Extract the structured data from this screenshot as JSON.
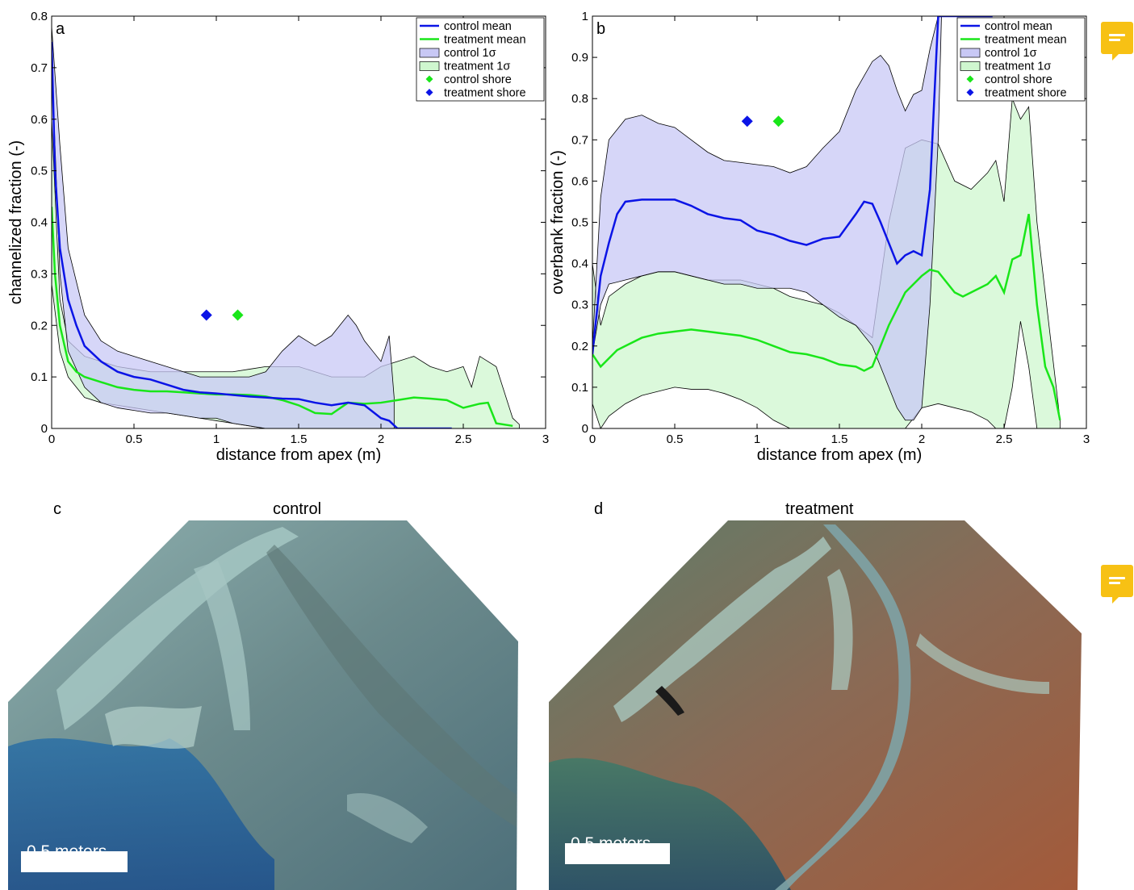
{
  "panels": {
    "c": {
      "letter": "c",
      "title": "control",
      "scale_label": "0.5 meters"
    },
    "d": {
      "letter": "d",
      "title": "treatment",
      "scale_label": "0.5 meters"
    }
  },
  "comment_icons": [
    {
      "name": "comment-icon"
    },
    {
      "name": "comment-icon"
    }
  ],
  "colors": {
    "control": "#0b14e6",
    "treatment": "#19e619",
    "control_band": "#c8c8f5",
    "treatment_band": "#cff7cf",
    "overlap": "#a9d8d0"
  },
  "chart_data": [
    {
      "type": "line",
      "panel_letter": "a",
      "xlabel": "distance from apex (m)",
      "ylabel": "channelized fraction (-)",
      "xlim": [
        0,
        3
      ],
      "ylim": [
        0,
        0.8
      ],
      "xticks": [
        0,
        0.5,
        1,
        1.5,
        2,
        2.5,
        3
      ],
      "xtick_labels": [
        "0",
        "0.5",
        "1",
        "1.5",
        "2",
        "2.5",
        "3"
      ],
      "yticks": [
        0,
        0.1,
        0.2,
        0.3,
        0.4,
        0.5,
        0.6,
        0.7,
        0.8
      ],
      "ytick_labels": [
        "0",
        "0.1",
        "0.2",
        "0.3",
        "0.4",
        "0.5",
        "0.6",
        "0.7",
        "0.8"
      ],
      "legend_position": "top-right",
      "legend": [
        "control mean",
        "treatment mean",
        "control 1σ",
        "treatment 1σ",
        "control shore",
        "treatment shore"
      ],
      "control_mean": {
        "x": [
          0,
          0.02,
          0.05,
          0.1,
          0.15,
          0.2,
          0.3,
          0.4,
          0.5,
          0.6,
          0.7,
          0.8,
          0.9,
          1.0,
          1.1,
          1.2,
          1.3,
          1.4,
          1.5,
          1.6,
          1.7,
          1.8,
          1.9,
          2.0,
          2.05,
          2.1,
          2.2,
          2.3,
          2.43
        ],
        "y": [
          0.75,
          0.5,
          0.35,
          0.25,
          0.2,
          0.16,
          0.13,
          0.11,
          0.1,
          0.095,
          0.085,
          0.075,
          0.07,
          0.068,
          0.065,
          0.062,
          0.06,
          0.058,
          0.057,
          0.05,
          0.045,
          0.05,
          0.045,
          0.02,
          0.015,
          0,
          0,
          0,
          0
        ]
      },
      "treatment_mean": {
        "x": [
          0,
          0.02,
          0.05,
          0.1,
          0.15,
          0.2,
          0.3,
          0.4,
          0.5,
          0.6,
          0.7,
          0.8,
          0.9,
          1.0,
          1.1,
          1.2,
          1.3,
          1.4,
          1.5,
          1.6,
          1.7,
          1.8,
          1.9,
          2.0,
          2.1,
          2.2,
          2.3,
          2.4,
          2.5,
          2.6,
          2.65,
          2.7,
          2.8
        ],
        "y": [
          0.43,
          0.3,
          0.2,
          0.13,
          0.11,
          0.1,
          0.09,
          0.08,
          0.075,
          0.072,
          0.072,
          0.07,
          0.068,
          0.066,
          0.066,
          0.065,
          0.062,
          0.055,
          0.045,
          0.03,
          0.028,
          0.05,
          0.048,
          0.05,
          0.055,
          0.06,
          0.058,
          0.055,
          0.04,
          0.048,
          0.05,
          0.01,
          0.005
        ]
      },
      "control_band": {
        "x": [
          0,
          0.05,
          0.1,
          0.2,
          0.3,
          0.4,
          0.5,
          0.6,
          0.7,
          0.8,
          0.9,
          1.0,
          1.1,
          1.2,
          1.3,
          1.4,
          1.5,
          1.6,
          1.7,
          1.8,
          1.85,
          1.9,
          1.95,
          2.0,
          2.05,
          2.08
        ],
        "upper": [
          0.78,
          0.55,
          0.35,
          0.22,
          0.17,
          0.15,
          0.14,
          0.13,
          0.12,
          0.11,
          0.1,
          0.1,
          0.1,
          0.1,
          0.11,
          0.15,
          0.18,
          0.16,
          0.18,
          0.22,
          0.2,
          0.17,
          0.15,
          0.13,
          0.18,
          0.06
        ],
        "lower": [
          0.72,
          0.3,
          0.15,
          0.08,
          0.05,
          0.04,
          0.035,
          0.03,
          0.03,
          0.025,
          0.02,
          0.02,
          0.01,
          0.005,
          0,
          0,
          0,
          0,
          0,
          0,
          0,
          0,
          0,
          0,
          0,
          0
        ]
      },
      "treatment_band": {
        "x": [
          0,
          0.05,
          0.1,
          0.2,
          0.3,
          0.4,
          0.5,
          0.6,
          0.7,
          0.8,
          0.9,
          1.0,
          1.1,
          1.2,
          1.3,
          1.4,
          1.5,
          1.6,
          1.7,
          1.8,
          1.9,
          2.0,
          2.1,
          2.2,
          2.3,
          2.4,
          2.5,
          2.55,
          2.6,
          2.7,
          2.8,
          2.84
        ],
        "upper": [
          0.6,
          0.25,
          0.17,
          0.14,
          0.13,
          0.12,
          0.115,
          0.11,
          0.11,
          0.11,
          0.11,
          0.11,
          0.11,
          0.115,
          0.12,
          0.12,
          0.12,
          0.11,
          0.1,
          0.1,
          0.1,
          0.12,
          0.13,
          0.14,
          0.12,
          0.11,
          0.12,
          0.08,
          0.14,
          0.12,
          0.02,
          0.008
        ],
        "lower": [
          0.28,
          0.15,
          0.1,
          0.06,
          0.05,
          0.045,
          0.04,
          0.035,
          0.03,
          0.025,
          0.02,
          0.015,
          0.01,
          0.005,
          0,
          0,
          0,
          0,
          0,
          0,
          0,
          0,
          0,
          0,
          0,
          0,
          0,
          0,
          0,
          0,
          0,
          0
        ]
      },
      "control_shore": {
        "x": 1.13,
        "y": 0.22
      },
      "treatment_shore": {
        "x": 0.94,
        "y": 0.22
      }
    },
    {
      "type": "line",
      "panel_letter": "b",
      "xlabel": "distance from apex (m)",
      "ylabel": "overbank fraction (-)",
      "xlim": [
        0,
        3
      ],
      "ylim": [
        0,
        1
      ],
      "xticks": [
        0,
        0.5,
        1,
        1.5,
        2,
        2.5,
        3
      ],
      "xtick_labels": [
        "0",
        "0.5",
        "1",
        "1.5",
        "2",
        "2.5",
        "3"
      ],
      "yticks": [
        0,
        0.1,
        0.2,
        0.3,
        0.4,
        0.5,
        0.6,
        0.7,
        0.8,
        0.9,
        1
      ],
      "ytick_labels": [
        "0",
        "0.1",
        "0.2",
        "0.3",
        "0.4",
        "0.5",
        "0.6",
        "0.7",
        "0.8",
        "0.9",
        "1"
      ],
      "legend_position": "top-right",
      "legend": [
        "control mean",
        "treatment mean",
        "control 1σ",
        "treatment 1σ",
        "control shore",
        "treatment shore"
      ],
      "control_mean": {
        "x": [
          0,
          0.05,
          0.1,
          0.15,
          0.2,
          0.3,
          0.4,
          0.5,
          0.6,
          0.7,
          0.8,
          0.9,
          1.0,
          1.1,
          1.2,
          1.3,
          1.4,
          1.5,
          1.6,
          1.65,
          1.7,
          1.75,
          1.8,
          1.85,
          1.9,
          1.95,
          2.0,
          2.05,
          2.1,
          2.15,
          2.3,
          2.43
        ],
        "y": [
          0.18,
          0.37,
          0.45,
          0.52,
          0.55,
          0.555,
          0.555,
          0.555,
          0.54,
          0.52,
          0.51,
          0.505,
          0.48,
          0.47,
          0.455,
          0.445,
          0.46,
          0.465,
          0.52,
          0.55,
          0.545,
          0.5,
          0.45,
          0.4,
          0.42,
          0.43,
          0.42,
          0.58,
          1,
          1,
          1,
          1
        ]
      },
      "treatment_mean": {
        "x": [
          0,
          0.05,
          0.1,
          0.15,
          0.2,
          0.3,
          0.4,
          0.5,
          0.6,
          0.7,
          0.8,
          0.9,
          1.0,
          1.1,
          1.2,
          1.3,
          1.4,
          1.5,
          1.6,
          1.65,
          1.7,
          1.8,
          1.9,
          2.0,
          2.05,
          2.1,
          2.2,
          2.25,
          2.3,
          2.4,
          2.45,
          2.5,
          2.55,
          2.6,
          2.65,
          2.7,
          2.75,
          2.8,
          2.84
        ],
        "y": [
          0.18,
          0.15,
          0.17,
          0.19,
          0.2,
          0.22,
          0.23,
          0.235,
          0.24,
          0.235,
          0.23,
          0.225,
          0.215,
          0.2,
          0.185,
          0.18,
          0.17,
          0.155,
          0.15,
          0.14,
          0.15,
          0.25,
          0.33,
          0.37,
          0.385,
          0.38,
          0.33,
          0.32,
          0.33,
          0.35,
          0.37,
          0.33,
          0.41,
          0.42,
          0.52,
          0.3,
          0.15,
          0.1,
          0.02
        ]
      },
      "control_band": {
        "x": [
          0,
          0.05,
          0.1,
          0.2,
          0.3,
          0.4,
          0.5,
          0.6,
          0.7,
          0.8,
          0.9,
          1.0,
          1.1,
          1.2,
          1.3,
          1.4,
          1.5,
          1.6,
          1.7,
          1.75,
          1.8,
          1.85,
          1.9,
          1.95,
          2.0,
          2.05,
          2.1,
          2.12
        ],
        "upper": [
          0.2,
          0.56,
          0.7,
          0.75,
          0.76,
          0.74,
          0.73,
          0.7,
          0.67,
          0.65,
          0.645,
          0.64,
          0.635,
          0.62,
          0.635,
          0.68,
          0.72,
          0.82,
          0.89,
          0.905,
          0.88,
          0.82,
          0.77,
          0.81,
          0.82,
          0.92,
          1,
          1
        ],
        "lower": [
          0.18,
          0.3,
          0.35,
          0.36,
          0.37,
          0.38,
          0.38,
          0.37,
          0.36,
          0.35,
          0.35,
          0.34,
          0.34,
          0.34,
          0.33,
          0.3,
          0.27,
          0.25,
          0.2,
          0.15,
          0.1,
          0.05,
          0.02,
          0.02,
          0.05,
          0.3,
          0.7,
          1
        ]
      },
      "treatment_band": {
        "x": [
          0,
          0.05,
          0.1,
          0.2,
          0.3,
          0.4,
          0.5,
          0.6,
          0.7,
          0.8,
          0.9,
          1.0,
          1.1,
          1.2,
          1.3,
          1.4,
          1.5,
          1.6,
          1.7,
          1.8,
          1.9,
          2.0,
          2.1,
          2.2,
          2.3,
          2.4,
          2.45,
          2.5,
          2.55,
          2.6,
          2.65,
          2.7,
          2.84
        ],
        "upper": [
          0.4,
          0.25,
          0.32,
          0.35,
          0.37,
          0.38,
          0.38,
          0.37,
          0.36,
          0.36,
          0.36,
          0.35,
          0.34,
          0.32,
          0.31,
          0.3,
          0.28,
          0.25,
          0.22,
          0.5,
          0.68,
          0.7,
          0.69,
          0.6,
          0.58,
          0.62,
          0.65,
          0.55,
          0.8,
          0.75,
          0.78,
          0.5,
          0.02
        ],
        "lower": [
          0.06,
          0,
          0.03,
          0.06,
          0.08,
          0.09,
          0.1,
          0.095,
          0.095,
          0.085,
          0.07,
          0.05,
          0.02,
          0,
          0,
          0,
          0,
          0,
          0,
          0,
          0,
          0.05,
          0.06,
          0.05,
          0.04,
          0.02,
          0,
          0,
          0.1,
          0.26,
          0.15,
          0,
          0
        ]
      },
      "control_shore": {
        "x": 1.13,
        "y": 0.745
      },
      "treatment_shore": {
        "x": 0.94,
        "y": 0.745
      }
    }
  ]
}
